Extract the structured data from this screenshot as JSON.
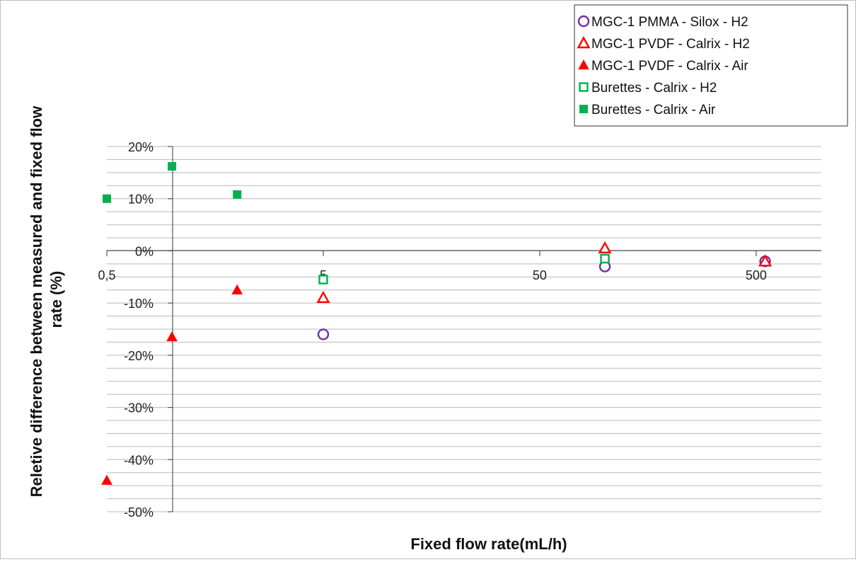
{
  "chart_data": {
    "type": "scatter",
    "title": "",
    "xlabel": "Fixed flow rate(mL/h)",
    "ylabel": "Reletive difference between measured and fixed flow rate (%)",
    "xscale": "log",
    "xlim": [
      0.5,
      1000
    ],
    "ylim": [
      -50,
      20
    ],
    "grid": true,
    "legend_position": "top-right",
    "x_ticks": [
      {
        "value": 0.5,
        "label": "0,5"
      },
      {
        "value": 5,
        "label": "5"
      },
      {
        "value": 50,
        "label": "50"
      },
      {
        "value": 500,
        "label": "500"
      }
    ],
    "y_ticks": [
      {
        "value": 20,
        "label": "20%"
      },
      {
        "value": 10,
        "label": "10%"
      },
      {
        "value": 0,
        "label": "0%"
      },
      {
        "value": -10,
        "label": "-10%"
      },
      {
        "value": -20,
        "label": "-20%"
      },
      {
        "value": -30,
        "label": "-30%"
      },
      {
        "value": -40,
        "label": "-40%"
      },
      {
        "value": -50,
        "label": "-50%"
      }
    ],
    "series": [
      {
        "name": "MGC-1 PMMA - Silox - H2",
        "marker": "circle-open",
        "color": "#7030a0",
        "points": [
          [
            5,
            -16
          ],
          [
            100,
            -3
          ],
          [
            550,
            -2
          ]
        ]
      },
      {
        "name": "MGC-1 PVDF - Calrix - H2",
        "marker": "triangle-open",
        "color": "#ff0000",
        "points": [
          [
            5,
            -9
          ],
          [
            100,
            0.5
          ],
          [
            550,
            -2
          ]
        ]
      },
      {
        "name": "MGC-1 PVDF - Calrix - Air",
        "marker": "triangle-filled",
        "color": "#ff0000",
        "points": [
          [
            0.5,
            -44
          ],
          [
            1,
            -16.5
          ],
          [
            2,
            -7.5
          ]
        ]
      },
      {
        "name": "Burettes - Calrix - H2",
        "marker": "square-open",
        "color": "#00b050",
        "points": [
          [
            5,
            -5.5
          ],
          [
            100,
            -1.5
          ]
        ]
      },
      {
        "name": "Burettes - Calrix - Air",
        "marker": "square-filled",
        "color": "#00b050",
        "points": [
          [
            0.5,
            10
          ],
          [
            1,
            16.2
          ],
          [
            2,
            10.8
          ]
        ]
      }
    ]
  }
}
